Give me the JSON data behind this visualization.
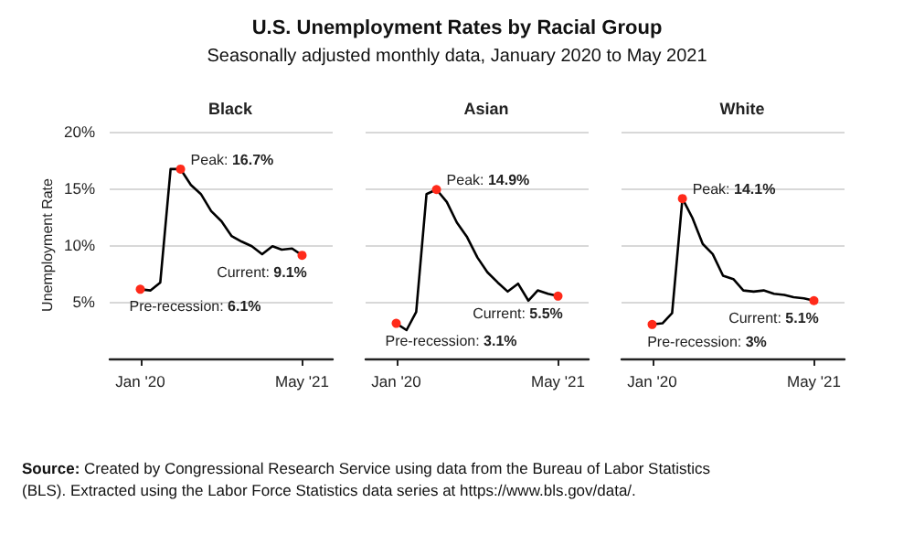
{
  "chart_data": [
    {
      "type": "line",
      "title": "U.S. Unemployment Rates by Racial Group",
      "subtitle": "Seasonally adjusted monthly data, January 2020 to May 2021",
      "ylabel": "Unemployment Rate",
      "x": [
        "2020-01",
        "2020-02",
        "2020-03",
        "2020-04",
        "2020-05",
        "2020-06",
        "2020-07",
        "2020-08",
        "2020-09",
        "2020-10",
        "2020-11",
        "2020-12",
        "2021-01",
        "2021-02",
        "2021-03",
        "2021-04",
        "2021-05"
      ],
      "series": [
        {
          "name": "Black",
          "color": "#000000",
          "values": [
            6.1,
            6.0,
            6.7,
            16.7,
            16.7,
            15.3,
            14.5,
            13.0,
            12.1,
            10.8,
            10.3,
            9.9,
            9.2,
            9.9,
            9.6,
            9.7,
            9.1
          ]
        }
      ],
      "xlim": [
        "2019-10",
        "2021-08"
      ],
      "xticks": [
        {
          "value": "2020-01",
          "label": "Jan '20"
        },
        {
          "value": "2021-05",
          "label": "May '21"
        }
      ],
      "ylim": [
        0,
        20
      ],
      "yticks": [
        {
          "value": 5,
          "label": "5%"
        },
        {
          "value": 10,
          "label": "10%"
        },
        {
          "value": 15,
          "label": "15%"
        },
        {
          "value": 20,
          "label": "20%"
        }
      ],
      "grid": "y",
      "marker": "none",
      "line_style": "solid",
      "annotations": [
        {
          "text": "Peak: 16.7%",
          "x": "2020-05",
          "y": 16.7
        },
        {
          "text": "Pre-recession: 6.1%",
          "x": "2020-01",
          "y": 6.1
        },
        {
          "text": "Current: 9.1%",
          "x": "2021-05",
          "y": 9.1
        },
        "Source: Created by Congressional Research Service using data from the Bureau of Labor Statistics (BLS). Extracted using the Labor Force Statistics data series at https://www.bls.gov/data/."
      ]
    },
    {
      "type": "line",
      "x": [
        "2020-01",
        "2020-02",
        "2020-03",
        "2020-04",
        "2020-05",
        "2020-06",
        "2020-07",
        "2020-08",
        "2020-09",
        "2020-10",
        "2020-11",
        "2020-12",
        "2021-01",
        "2021-02",
        "2021-03",
        "2021-04",
        "2021-05"
      ],
      "series": [
        {
          "name": "Asian",
          "color": "#000000",
          "values": [
            3.1,
            2.5,
            4.1,
            14.5,
            14.9,
            13.8,
            12.0,
            10.7,
            8.9,
            7.6,
            6.7,
            5.9,
            6.6,
            5.1,
            6.0,
            5.7,
            5.5
          ]
        }
      ],
      "xlim": [
        "2019-10",
        "2021-08"
      ],
      "xticks": [
        {
          "value": "2020-01",
          "label": "Jan '20"
        },
        {
          "value": "2021-05",
          "label": "May '21"
        }
      ],
      "ylim": [
        0,
        20
      ],
      "yticks": [
        5,
        10,
        15,
        20
      ],
      "tick_labels": "x",
      "grid": "y",
      "marker": "none",
      "line_style": "solid",
      "annotations": [
        {
          "text": "Peak: 14.9%",
          "x": "2020-05",
          "y": 14.9
        },
        {
          "text": "Pre-recession: 3.1%",
          "x": "2020-01",
          "y": 3.1
        },
        {
          "text": "Current: 5.5%",
          "x": "2021-05",
          "y": 5.5
        }
      ]
    },
    {
      "type": "line",
      "x": [
        "2020-01",
        "2020-02",
        "2020-03",
        "2020-04",
        "2020-05",
        "2020-06",
        "2020-07",
        "2020-08",
        "2020-09",
        "2020-10",
        "2020-11",
        "2020-12",
        "2021-01",
        "2021-02",
        "2021-03",
        "2021-04",
        "2021-05"
      ],
      "series": [
        {
          "name": "White",
          "color": "#000000",
          "values": [
            3.0,
            3.1,
            4.0,
            14.1,
            12.4,
            10.1,
            9.2,
            7.3,
            7.0,
            6.0,
            5.9,
            6.0,
            5.7,
            5.6,
            5.4,
            5.3,
            5.1
          ]
        }
      ],
      "xlim": [
        "2019-10",
        "2021-08"
      ],
      "xticks": [
        {
          "value": "2020-01",
          "label": "Jan '20"
        },
        {
          "value": "2021-05",
          "label": "May '21"
        }
      ],
      "ylim": [
        0,
        20
      ],
      "yticks": [
        5,
        10,
        15,
        20
      ],
      "tick_labels": "x",
      "grid": "y",
      "marker": "none",
      "line_style": "solid",
      "annotations": [
        {
          "text": "Peak: 14.1%",
          "x": "2020-04",
          "y": 14.1
        },
        {
          "text": "Pre-recession: 3%",
          "x": "2020-01",
          "y": 3.0
        },
        {
          "text": "Current: 5.1%",
          "x": "2021-05",
          "y": 5.1
        }
      ]
    }
  ]
}
